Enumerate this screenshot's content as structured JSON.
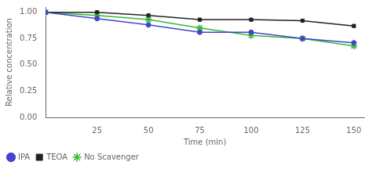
{
  "chart_data": {
    "type": "line",
    "x": [
      0,
      25,
      50,
      75,
      100,
      125,
      150
    ],
    "series": [
      {
        "name": "IPA",
        "color": "#4444cc",
        "marker": "circle",
        "values": [
          1.0,
          0.94,
          0.88,
          0.81,
          0.81,
          0.75,
          0.71
        ]
      },
      {
        "name": "TEOA",
        "color": "#222222",
        "marker": "square",
        "values": [
          1.0,
          1.0,
          0.97,
          0.93,
          0.93,
          0.92,
          0.87
        ]
      },
      {
        "name": "No Scavenger",
        "color": "#33bb33",
        "marker": "star",
        "values": [
          1.0,
          0.97,
          0.93,
          0.85,
          0.78,
          0.75,
          0.68
        ]
      }
    ],
    "xlabel": "Time (min)",
    "ylabel": "Relative concentration",
    "xlim": [
      0,
      155
    ],
    "xticks": [
      25,
      50,
      75,
      100,
      125,
      150
    ],
    "ylim": [
      0.0,
      1.05
    ],
    "yticks": [
      {
        "value": 0.0,
        "label": "0.00"
      },
      0.25,
      {
        "value": 0.5,
        "label": "0.50"
      },
      0.75,
      {
        "value": 1.0,
        "label": "1.00"
      }
    ],
    "grid": false,
    "legend": "lower left"
  }
}
